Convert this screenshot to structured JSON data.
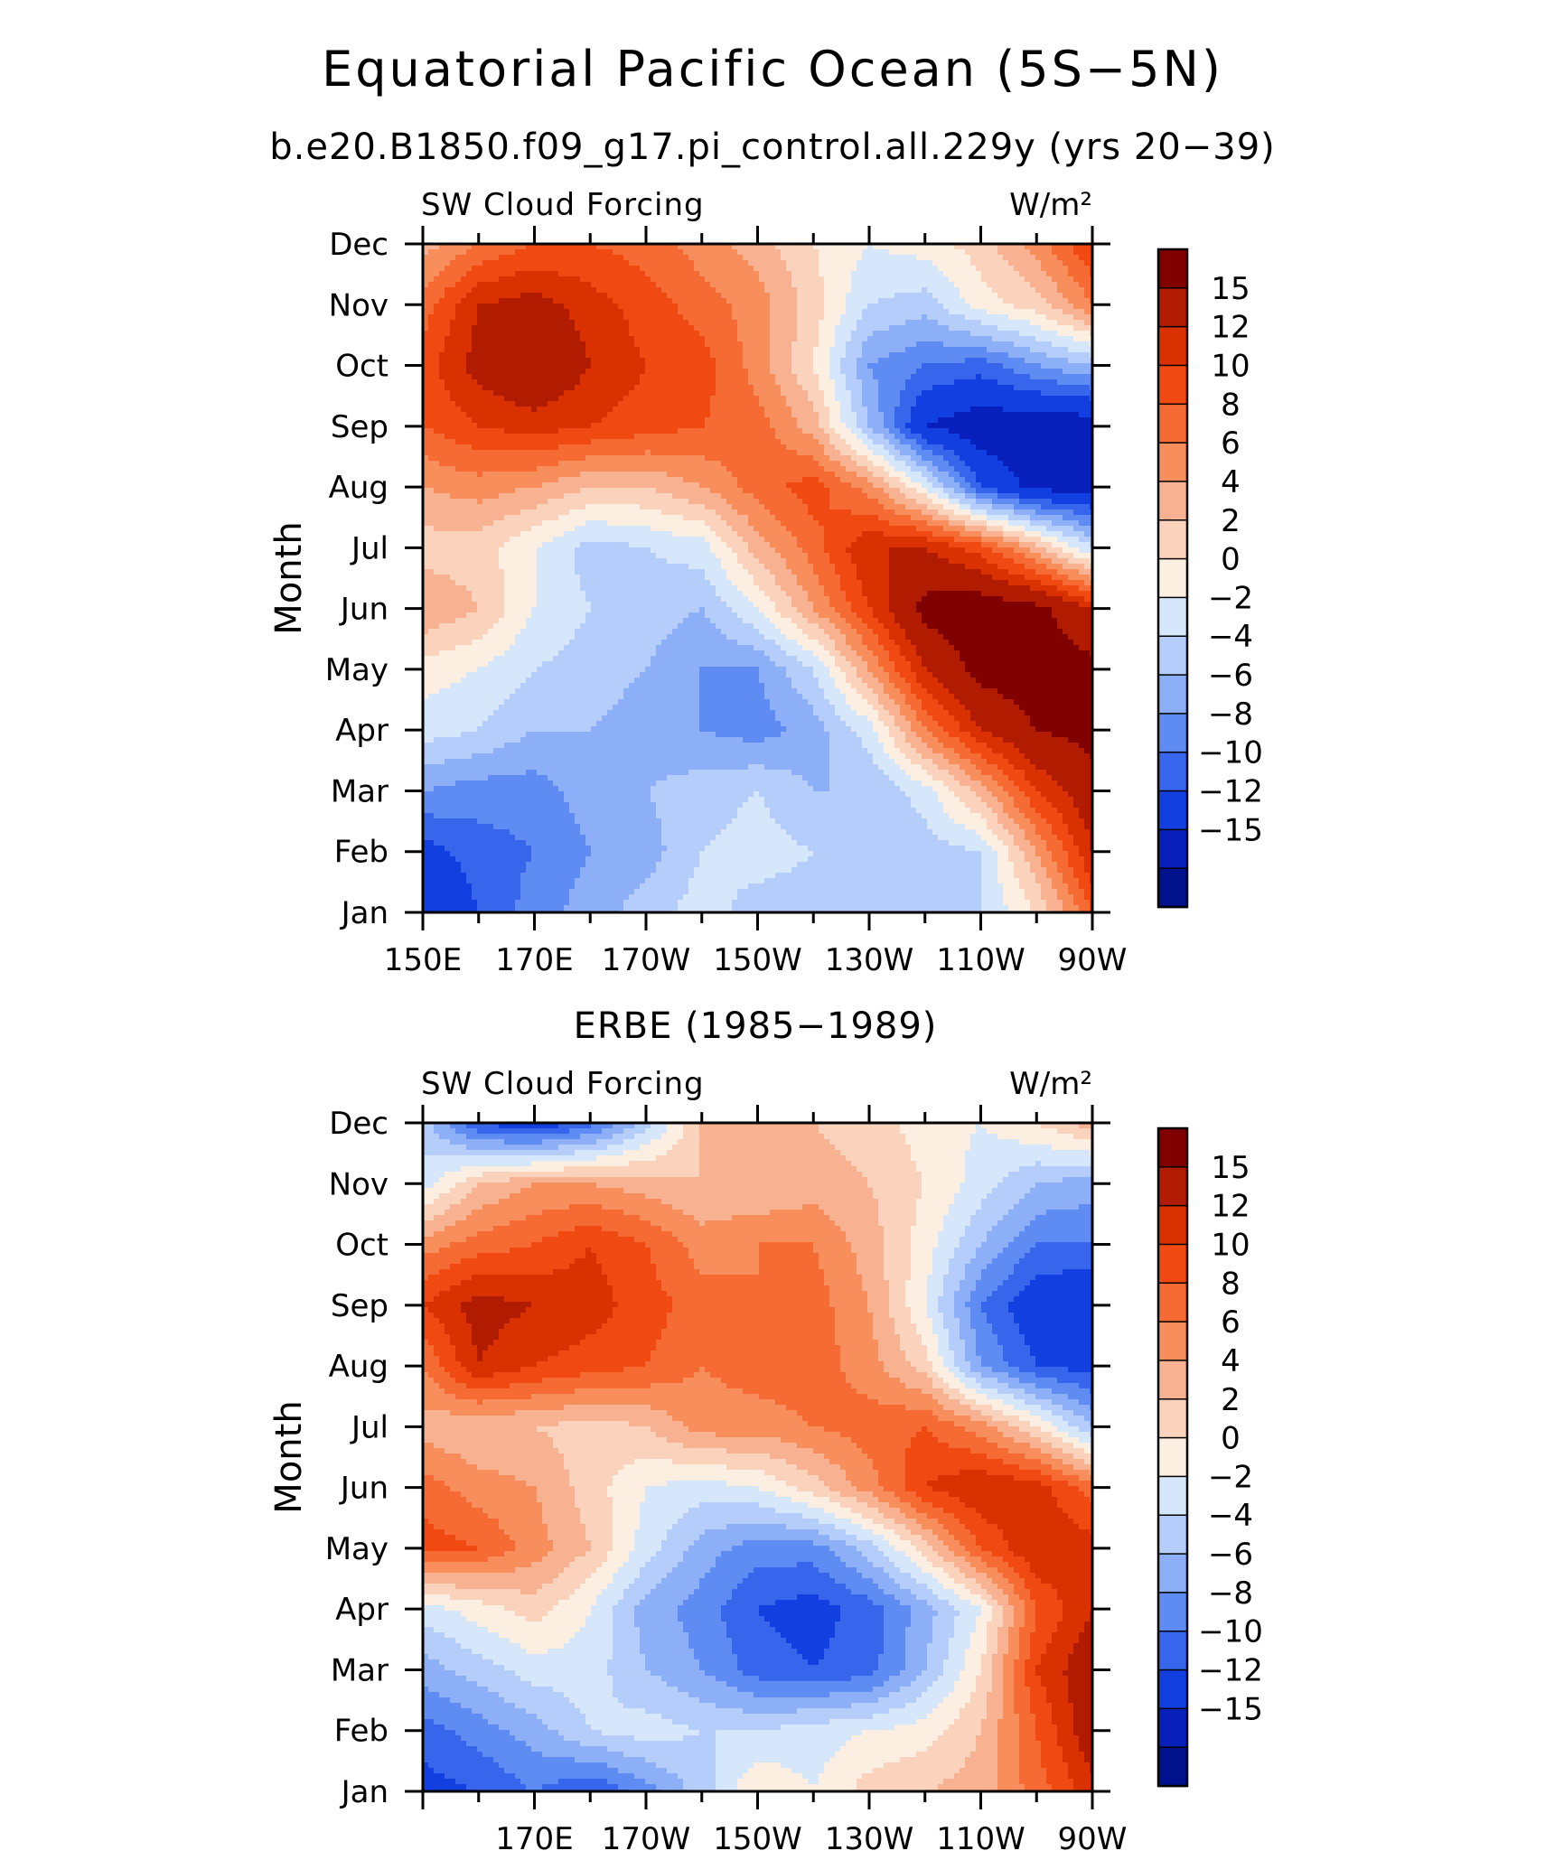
{
  "title": "Equatorial Pacific Ocean (5S−5N)",
  "subtitle": "b.e20.B1850.f09_g17.pi_control.all.229y (yrs 20−39)",
  "colorbar": {
    "labels": [
      "15",
      "12",
      "10",
      "8",
      "6",
      "4",
      "2",
      "0",
      "−2",
      "−4",
      "−6",
      "−8",
      "−10",
      "−12",
      "−15"
    ],
    "levels": [
      15,
      12,
      10,
      8,
      6,
      4,
      2,
      0,
      -2,
      -4,
      -6,
      -8,
      -10,
      -12,
      -15
    ],
    "colors": [
      "#800000",
      "#b11c00",
      "#d93200",
      "#f04a12",
      "#f66b33",
      "#f88e5c",
      "#f9b291",
      "#fbd3bd",
      "#fdeee2",
      "#d7e7fb",
      "#b4cdfa",
      "#8caff8",
      "#5f8cf2",
      "#3766ec",
      "#1240e0",
      "#0720bb",
      "#00118e"
    ]
  },
  "chart_data": [
    {
      "type": "heatmap",
      "panel_title": "",
      "variable_label": "SW Cloud Forcing",
      "units_label": "W/m²",
      "ylabel": "Month",
      "x_tick_labels": [
        "150E",
        "170E",
        "170W",
        "150W",
        "130W",
        "110W",
        "90W"
      ],
      "y_tick_labels": [
        "Jan",
        "Feb",
        "Mar",
        "Apr",
        "May",
        "Jun",
        "Jul",
        "Aug",
        "Sep",
        "Oct",
        "Nov",
        "Dec"
      ],
      "x_lon_range": [
        150,
        270
      ],
      "x_grid_lon": [
        150,
        160,
        170,
        180,
        190,
        200,
        210,
        220,
        230,
        240,
        250,
        260,
        270
      ],
      "values": [
        [
          -15,
          -12,
          -9,
          -7,
          -5,
          -3,
          -5,
          -5,
          -6,
          -5,
          -4,
          0,
          8
        ],
        [
          -13,
          -11,
          -10,
          -8,
          -7,
          -4,
          -3,
          -4,
          -6,
          -5,
          -4,
          4,
          12
        ],
        [
          -8,
          -9,
          -9,
          -7,
          -6,
          -5,
          -4,
          -6,
          -6,
          -3,
          3,
          10,
          14
        ],
        [
          -3,
          -4,
          -6,
          -6,
          -7,
          -8,
          -9,
          -7,
          -3,
          6,
          12,
          15,
          16
        ],
        [
          -1,
          -2,
          -4,
          -5,
          -6,
          -8,
          -8,
          -4,
          4,
          12,
          16,
          17,
          16
        ],
        [
          4,
          2,
          -2,
          -4,
          -5,
          -6,
          -2,
          4,
          10,
          16,
          17,
          16,
          12
        ],
        [
          1,
          1,
          -2,
          -5,
          -4,
          -3,
          3,
          7,
          12,
          12,
          9,
          3,
          -4
        ],
        [
          4,
          5,
          4,
          2,
          2,
          4,
          7,
          9,
          5,
          -2,
          -12,
          -16,
          -16
        ],
        [
          8,
          10,
          11,
          10,
          9,
          8,
          7,
          3,
          -6,
          -15,
          -17,
          -17,
          -17
        ],
        [
          9,
          13,
          15,
          12,
          10,
          9,
          5,
          0,
          -8,
          -10,
          -11,
          -8,
          -6
        ],
        [
          7,
          12,
          13,
          11,
          9,
          7,
          5,
          1,
          -4,
          -5,
          -1,
          1,
          6
        ],
        [
          3,
          6,
          8,
          8,
          7,
          5,
          3,
          0,
          -2,
          -1,
          1,
          5,
          10
        ]
      ]
    },
    {
      "type": "heatmap",
      "panel_title": "ERBE (1985−1989)",
      "variable_label": "SW Cloud Forcing",
      "units_label": "W/m²",
      "ylabel": "Month",
      "x_tick_labels": [
        "170E",
        "170W",
        "150W",
        "130W",
        "110W",
        "90W"
      ],
      "y_tick_labels": [
        "Jan",
        "Feb",
        "Mar",
        "Apr",
        "May",
        "Jun",
        "Jul",
        "Aug",
        "Sep",
        "Oct",
        "Nov",
        "Dec"
      ],
      "x_lon_range": [
        150,
        270
      ],
      "x_grid_lon": [
        150,
        160,
        170,
        180,
        190,
        200,
        210,
        220,
        230,
        240,
        250,
        260,
        270
      ],
      "values": [
        [
          -13,
          -12,
          -10,
          -12,
          -9,
          -5,
          0,
          -2,
          1,
          2,
          3,
          7,
          11
        ],
        [
          -11,
          -9,
          -7,
          -4,
          -3,
          -4,
          -4,
          -3,
          -2,
          -1,
          2,
          8,
          14
        ],
        [
          -7,
          -5,
          -3,
          -3,
          -6,
          -8,
          -11,
          -12,
          -11,
          -6,
          0,
          10,
          14
        ],
        [
          -3,
          -1,
          1,
          -2,
          -7,
          -9,
          -12,
          -13,
          -11,
          -7,
          -2,
          8,
          12
        ],
        [
          9,
          8,
          5,
          2,
          -3,
          -7,
          -9,
          -9,
          -5,
          1,
          8,
          12,
          11
        ],
        [
          7,
          5,
          4,
          1,
          -2,
          -3,
          -2,
          1,
          5,
          10,
          12,
          11,
          7
        ],
        [
          3,
          2,
          2,
          1,
          2,
          5,
          5,
          6,
          7,
          8,
          5,
          0,
          -6
        ],
        [
          6,
          12,
          10,
          9,
          8,
          6,
          7,
          7,
          5,
          1,
          -8,
          -12,
          -13
        ],
        [
          10,
          13,
          12,
          11,
          9,
          7,
          6,
          7,
          4,
          -2,
          -10,
          -14,
          -15
        ],
        [
          5,
          7,
          8,
          10,
          8,
          5,
          6,
          6,
          3,
          -1,
          -6,
          -10,
          -10
        ],
        [
          -3,
          2,
          4,
          4,
          3,
          2,
          2,
          3,
          2,
          0,
          -3,
          -6,
          -7
        ],
        [
          -5,
          -12,
          -14,
          -11,
          -5,
          2,
          2,
          2,
          1,
          -1,
          -2,
          0,
          3
        ]
      ]
    }
  ]
}
